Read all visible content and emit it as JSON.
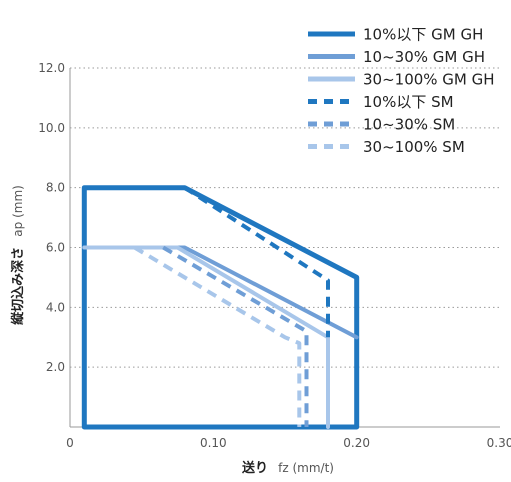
{
  "chart_data": {
    "type": "line",
    "xlabel_main": "送り",
    "xlabel_unit": "fz (mm/t)",
    "ylabel_main": "縦切込み深さ",
    "ylabel_unit": "ap (mm)",
    "xlim": [
      0,
      0.3
    ],
    "ylim": [
      0,
      12.0
    ],
    "x_ticks": [
      {
        "value": 0,
        "label": "0"
      },
      {
        "value": 0.1,
        "label": "0.10"
      },
      {
        "value": 0.2,
        "label": "0.20"
      },
      {
        "value": 0.3,
        "label": "0.30"
      }
    ],
    "y_ticks": [
      {
        "value": 2.0,
        "label": "2.0"
      },
      {
        "value": 4.0,
        "label": "4.0"
      },
      {
        "value": 6.0,
        "label": "6.0"
      },
      {
        "value": 8.0,
        "label": "8.0"
      },
      {
        "value": 10.0,
        "label": "10.0"
      },
      {
        "value": 12.0,
        "label": "12.0"
      }
    ],
    "grid": "horizontal-dotted",
    "legend_position": "top-right",
    "series": [
      {
        "name": "10%以下 GM GH",
        "color": "#1f77c0",
        "dashed": false,
        "points": [
          [
            0.01,
            0
          ],
          [
            0.01,
            8.0
          ],
          [
            0.08,
            8.0
          ],
          [
            0.2,
            5.0
          ],
          [
            0.2,
            0
          ]
        ],
        "closed": true
      },
      {
        "name": "10~30% GM GH",
        "color": "#6f9ed6",
        "dashed": false,
        "points": [
          [
            0.01,
            6.0
          ],
          [
            0.08,
            6.0
          ],
          [
            0.2,
            3.0
          ]
        ],
        "closed": false
      },
      {
        "name": "30~100% GM GH",
        "color": "#a8c6ea",
        "dashed": false,
        "points": [
          [
            0.01,
            6.0
          ],
          [
            0.075,
            6.0
          ],
          [
            0.18,
            3.0
          ],
          [
            0.18,
            0
          ]
        ],
        "closed": false
      },
      {
        "name": "10%以下 SM",
        "color": "#1f77c0",
        "dashed": true,
        "points": [
          [
            0.08,
            8.0
          ],
          [
            0.18,
            4.9
          ],
          [
            0.18,
            3.0
          ]
        ],
        "closed": false
      },
      {
        "name": "10~30% SM",
        "color": "#6f9ed6",
        "dashed": true,
        "points": [
          [
            0.065,
            6.0
          ],
          [
            0.165,
            3.2
          ],
          [
            0.165,
            0
          ]
        ],
        "closed": false
      },
      {
        "name": "30~100% SM",
        "color": "#a8c6ea",
        "dashed": true,
        "points": [
          [
            0.045,
            6.0
          ],
          [
            0.15,
            3.0
          ],
          [
            0.16,
            2.8
          ],
          [
            0.16,
            0
          ]
        ],
        "closed": false
      }
    ]
  }
}
